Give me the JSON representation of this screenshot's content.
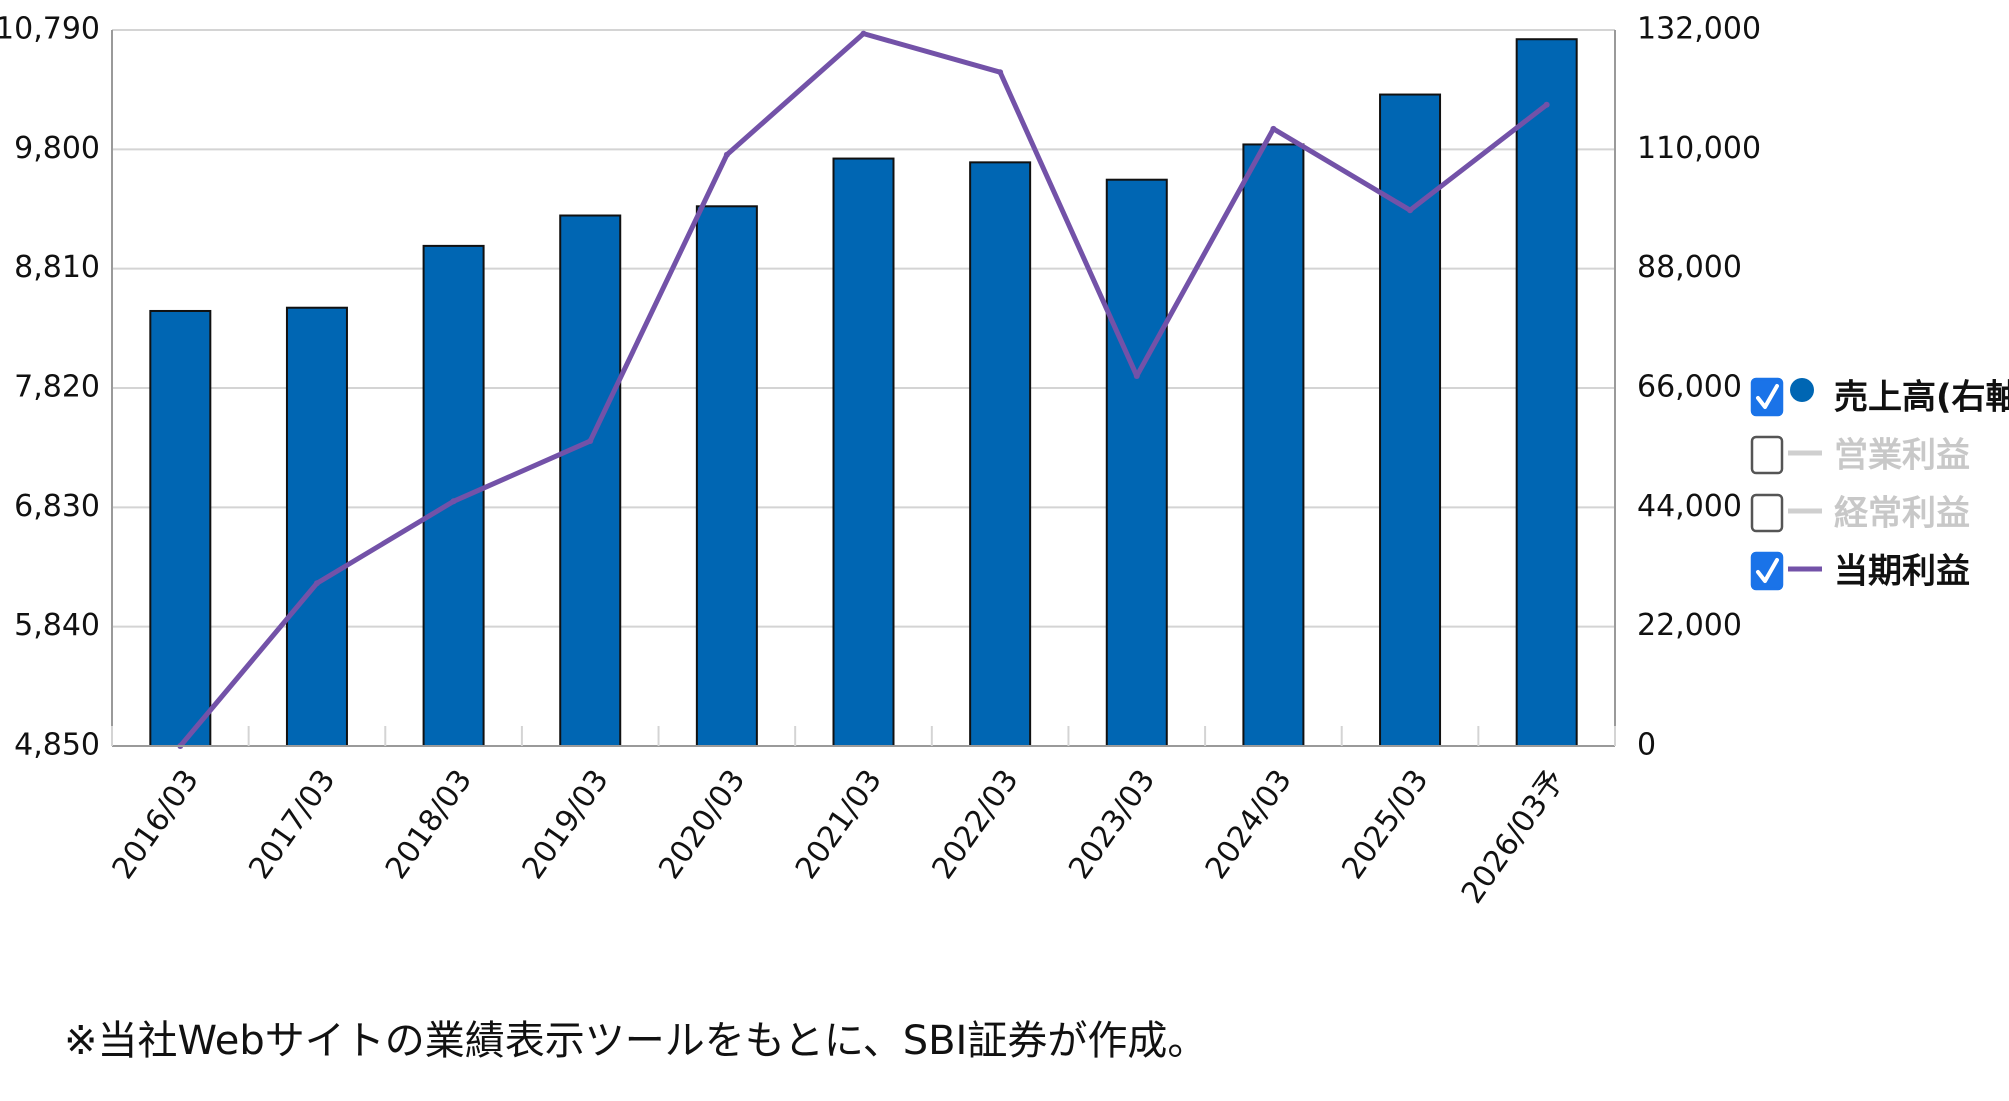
{
  "chart_data": {
    "type": "bar",
    "categories": [
      "2016/03",
      "2017/03",
      "2018/03",
      "2019/03",
      "2020/03",
      "2021/03",
      "2022/03",
      "2023/03",
      "2024/03",
      "2025/03",
      "2026/03予"
    ],
    "series": [
      {
        "name": "売上高(右軸)",
        "axis": "right",
        "type": "bar",
        "color": "#0066b3",
        "values": [
          80200,
          80800,
          92200,
          97800,
          99500,
          108300,
          107600,
          104400,
          110900,
          120100,
          130300
        ]
      },
      {
        "name": "当期利益",
        "axis": "left",
        "type": "line",
        "color": "#7352a8",
        "values": [
          4850,
          6200,
          6880,
          7380,
          9755,
          10760,
          10440,
          7920,
          9970,
          9295,
          10170
        ]
      }
    ],
    "left_axis": {
      "ylim": [
        4850,
        10790
      ],
      "ticks": [
        "10,790",
        "9,800",
        "8,810",
        "7,820",
        "6,830",
        "5,840",
        "4,850"
      ]
    },
    "right_axis": {
      "ylim": [
        0,
        132000
      ],
      "ticks": [
        "132,000",
        "110,000",
        "88,000",
        "66,000",
        "44,000",
        "22,000",
        "0"
      ]
    },
    "grid": true,
    "legend_position": "right",
    "legend": [
      {
        "label": "売上高(右軸)",
        "checked": true,
        "marker": "circle",
        "color": "#0066b3",
        "text_color": "#111111"
      },
      {
        "label": "営業利益",
        "checked": false,
        "marker": "line",
        "color": "#cfcfcf",
        "text_color": "#c8c8c8"
      },
      {
        "label": "経常利益",
        "checked": false,
        "marker": "line",
        "color": "#cfcfcf",
        "text_color": "#c8c8c8"
      },
      {
        "label": "当期利益",
        "checked": true,
        "marker": "line",
        "color": "#7352a8",
        "text_color": "#111111"
      }
    ]
  },
  "footnote": "※当社Webサイトの業績表示ツールをもとに、SBI証券が作成。"
}
